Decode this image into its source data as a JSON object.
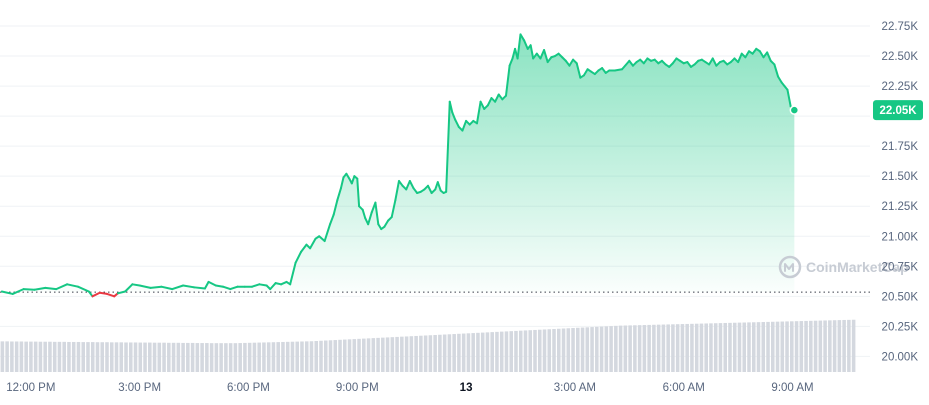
{
  "chart_data": {
    "type": "area",
    "watermark_text": "CoinMarketCap",
    "y_ticks": [
      {
        "value": 20000,
        "label": "20.00K"
      },
      {
        "value": 20250,
        "label": "20.25K"
      },
      {
        "value": 20500,
        "label": "20.50K"
      },
      {
        "value": 20750,
        "label": "20.75K"
      },
      {
        "value": 21000,
        "label": "21.00K"
      },
      {
        "value": 21250,
        "label": "21.25K"
      },
      {
        "value": 21500,
        "label": "21.50K"
      },
      {
        "value": 21750,
        "label": "21.75K"
      },
      {
        "value": 22000,
        "label": "22.00K"
      },
      {
        "value": 22250,
        "label": "22.25K"
      },
      {
        "value": 22500,
        "label": "22.50K"
      },
      {
        "value": 22750,
        "label": "22.75K"
      }
    ],
    "x_ticks": [
      {
        "hour": 12,
        "label": "12:00 PM",
        "bold": false
      },
      {
        "hour": 15,
        "label": "3:00 PM",
        "bold": false
      },
      {
        "hour": 18,
        "label": "6:00 PM",
        "bold": false
      },
      {
        "hour": 21,
        "label": "9:00 PM",
        "bold": false
      },
      {
        "hour": 24,
        "label": "13",
        "bold": true
      },
      {
        "hour": 27,
        "label": "3:00 AM",
        "bold": false
      },
      {
        "hour": 30,
        "label": "6:00 AM",
        "bold": false
      },
      {
        "hour": 33,
        "label": "9:00 AM",
        "bold": false
      }
    ],
    "x_range_hours": [
      11.15,
      34.75
    ],
    "y_range": [
      19870,
      22900
    ],
    "reference_price": 20535,
    "current_price_label": "22.05K",
    "colors": {
      "up": "#16c784",
      "down": "#ea3943",
      "area_top": "#16c784",
      "volume": "#d4d8df",
      "grid": "#eff2f5",
      "reference_line": "#3a3f4a",
      "label_bg": "#16c784"
    },
    "price_series": [
      [
        11.2,
        20540
      ],
      [
        11.5,
        20520
      ],
      [
        11.8,
        20560
      ],
      [
        12.1,
        20555
      ],
      [
        12.4,
        20570
      ],
      [
        12.7,
        20560
      ],
      [
        13.0,
        20600
      ],
      [
        13.3,
        20580
      ],
      [
        13.6,
        20540
      ],
      [
        13.7,
        20500
      ],
      [
        13.9,
        20530
      ],
      [
        14.1,
        20520
      ],
      [
        14.3,
        20500
      ],
      [
        14.4,
        20525
      ],
      [
        14.6,
        20540
      ],
      [
        14.8,
        20600
      ],
      [
        15.0,
        20590
      ],
      [
        15.3,
        20570
      ],
      [
        15.6,
        20580
      ],
      [
        15.9,
        20560
      ],
      [
        16.2,
        20590
      ],
      [
        16.5,
        20575
      ],
      [
        16.8,
        20565
      ],
      [
        16.9,
        20620
      ],
      [
        17.1,
        20590
      ],
      [
        17.3,
        20580
      ],
      [
        17.5,
        20560
      ],
      [
        17.7,
        20580
      ],
      [
        17.9,
        20580
      ],
      [
        18.1,
        20580
      ],
      [
        18.3,
        20600
      ],
      [
        18.5,
        20590
      ],
      [
        18.6,
        20560
      ],
      [
        18.75,
        20610
      ],
      [
        18.9,
        20600
      ],
      [
        19.05,
        20620
      ],
      [
        19.15,
        20600
      ],
      [
        19.3,
        20780
      ],
      [
        19.45,
        20870
      ],
      [
        19.6,
        20930
      ],
      [
        19.7,
        20900
      ],
      [
        19.85,
        20980
      ],
      [
        19.95,
        21000
      ],
      [
        20.1,
        20960
      ],
      [
        20.25,
        21100
      ],
      [
        20.35,
        21180
      ],
      [
        20.45,
        21300
      ],
      [
        20.55,
        21400
      ],
      [
        20.62,
        21490
      ],
      [
        20.7,
        21520
      ],
      [
        20.78,
        21480
      ],
      [
        20.85,
        21440
      ],
      [
        20.92,
        21500
      ],
      [
        21.0,
        21480
      ],
      [
        21.05,
        21250
      ],
      [
        21.15,
        21220
      ],
      [
        21.22,
        21150
      ],
      [
        21.3,
        21100
      ],
      [
        21.4,
        21200
      ],
      [
        21.5,
        21280
      ],
      [
        21.58,
        21100
      ],
      [
        21.66,
        21060
      ],
      [
        21.75,
        21080
      ],
      [
        21.85,
        21130
      ],
      [
        21.95,
        21160
      ],
      [
        22.05,
        21300
      ],
      [
        22.15,
        21460
      ],
      [
        22.25,
        21420
      ],
      [
        22.35,
        21390
      ],
      [
        22.45,
        21460
      ],
      [
        22.55,
        21400
      ],
      [
        22.65,
        21360
      ],
      [
        22.75,
        21370
      ],
      [
        22.85,
        21390
      ],
      [
        22.95,
        21420
      ],
      [
        23.05,
        21360
      ],
      [
        23.15,
        21390
      ],
      [
        23.22,
        21450
      ],
      [
        23.3,
        21380
      ],
      [
        23.38,
        21360
      ],
      [
        23.45,
        21370
      ],
      [
        23.55,
        22120
      ],
      [
        23.62,
        22030
      ],
      [
        23.7,
        21970
      ],
      [
        23.8,
        21910
      ],
      [
        23.9,
        21880
      ],
      [
        24.0,
        21960
      ],
      [
        24.1,
        21930
      ],
      [
        24.2,
        21960
      ],
      [
        24.3,
        21940
      ],
      [
        24.4,
        22120
      ],
      [
        24.5,
        22060
      ],
      [
        24.6,
        22090
      ],
      [
        24.7,
        22150
      ],
      [
        24.8,
        22120
      ],
      [
        24.9,
        22180
      ],
      [
        25.0,
        22140
      ],
      [
        25.1,
        22170
      ],
      [
        25.2,
        22420
      ],
      [
        25.28,
        22480
      ],
      [
        25.35,
        22560
      ],
      [
        25.42,
        22480
      ],
      [
        25.5,
        22680
      ],
      [
        25.6,
        22630
      ],
      [
        25.7,
        22560
      ],
      [
        25.78,
        22590
      ],
      [
        25.85,
        22480
      ],
      [
        25.95,
        22520
      ],
      [
        26.05,
        22480
      ],
      [
        26.15,
        22550
      ],
      [
        26.25,
        22450
      ],
      [
        26.35,
        22490
      ],
      [
        26.45,
        22500
      ],
      [
        26.55,
        22520
      ],
      [
        26.65,
        22490
      ],
      [
        26.75,
        22460
      ],
      [
        26.85,
        22420
      ],
      [
        26.95,
        22470
      ],
      [
        27.05,
        22440
      ],
      [
        27.15,
        22320
      ],
      [
        27.25,
        22340
      ],
      [
        27.35,
        22390
      ],
      [
        27.45,
        22370
      ],
      [
        27.55,
        22350
      ],
      [
        27.65,
        22380
      ],
      [
        27.75,
        22400
      ],
      [
        27.85,
        22360
      ],
      [
        27.95,
        22380
      ],
      [
        28.1,
        22380
      ],
      [
        28.3,
        22390
      ],
      [
        28.5,
        22460
      ],
      [
        28.6,
        22420
      ],
      [
        28.7,
        22450
      ],
      [
        28.8,
        22470
      ],
      [
        28.9,
        22440
      ],
      [
        29.0,
        22480
      ],
      [
        29.1,
        22460
      ],
      [
        29.2,
        22470
      ],
      [
        29.3,
        22440
      ],
      [
        29.4,
        22460
      ],
      [
        29.5,
        22430
      ],
      [
        29.6,
        22410
      ],
      [
        29.7,
        22440
      ],
      [
        29.8,
        22480
      ],
      [
        29.9,
        22460
      ],
      [
        30.0,
        22440
      ],
      [
        30.1,
        22450
      ],
      [
        30.2,
        22410
      ],
      [
        30.3,
        22430
      ],
      [
        30.4,
        22460
      ],
      [
        30.5,
        22470
      ],
      [
        30.6,
        22450
      ],
      [
        30.7,
        22430
      ],
      [
        30.8,
        22480
      ],
      [
        30.9,
        22420
      ],
      [
        31.0,
        22450
      ],
      [
        31.1,
        22460
      ],
      [
        31.2,
        22430
      ],
      [
        31.3,
        22450
      ],
      [
        31.4,
        22480
      ],
      [
        31.5,
        22450
      ],
      [
        31.6,
        22520
      ],
      [
        31.7,
        22490
      ],
      [
        31.8,
        22540
      ],
      [
        31.9,
        22520
      ],
      [
        32.0,
        22560
      ],
      [
        32.1,
        22540
      ],
      [
        32.2,
        22490
      ],
      [
        32.3,
        22530
      ],
      [
        32.4,
        22460
      ],
      [
        32.5,
        22430
      ],
      [
        32.6,
        22330
      ],
      [
        32.7,
        22280
      ],
      [
        32.78,
        22250
      ],
      [
        32.86,
        22220
      ],
      [
        32.95,
        22080
      ],
      [
        33.05,
        22050
      ]
    ],
    "volume_series": [
      20125,
      20125,
      20124,
      20124,
      20124,
      20123,
      20123,
      20123,
      20122,
      20122,
      20122,
      20121,
      20121,
      20121,
      20120,
      20120,
      20120,
      20119,
      20119,
      20119,
      20118,
      20118,
      20118,
      20117,
      20117,
      20117,
      20116,
      20116,
      20116,
      20115,
      20115,
      20115,
      20114,
      20114,
      20114,
      20113,
      20113,
      20113,
      20112,
      20112,
      20112,
      20111,
      20111,
      20111,
      20110,
      20110,
      20110,
      20110,
      20110,
      20110,
      20111,
      20112,
      20113,
      20114,
      20115,
      20116,
      20117,
      20118,
      20119,
      20120,
      20121,
      20122,
      20123,
      20124,
      20125,
      20126,
      20128,
      20130,
      20132,
      20134,
      20136,
      20138,
      20140,
      20142,
      20144,
      20146,
      20148,
      20150,
      20152,
      20154,
      20156,
      20158,
      20160,
      20162,
      20164,
      20166,
      20168,
      20170,
      20172,
      20174,
      20176,
      20178,
      20180,
      20182,
      20184,
      20186,
      20188,
      20190,
      20192,
      20194,
      20196,
      20198,
      20200,
      20202,
      20204,
      20206,
      20208,
      20210,
      20212,
      20214,
      20216,
      20218,
      20220,
      20222,
      20224,
      20226,
      20228,
      20230,
      20232,
      20234,
      20236,
      20238,
      20240,
      20242,
      20244,
      20246,
      20248,
      20250,
      20252,
      20254,
      20256,
      20257,
      20258,
      20259,
      20260,
      20261,
      20262,
      20263,
      20264,
      20265,
      20266,
      20267,
      20268,
      20269,
      20270,
      20271,
      20272,
      20273,
      20274,
      20275,
      20276,
      20277,
      20278,
      20279,
      20280,
      20281,
      20282,
      20283,
      20284,
      20285,
      20286,
      20287,
      20288,
      20289,
      20290,
      20291,
      20292,
      20293,
      20294,
      20295,
      20296,
      20297,
      20298,
      20299,
      20300,
      20301,
      20302,
      20303,
      20304,
      20305
    ]
  }
}
